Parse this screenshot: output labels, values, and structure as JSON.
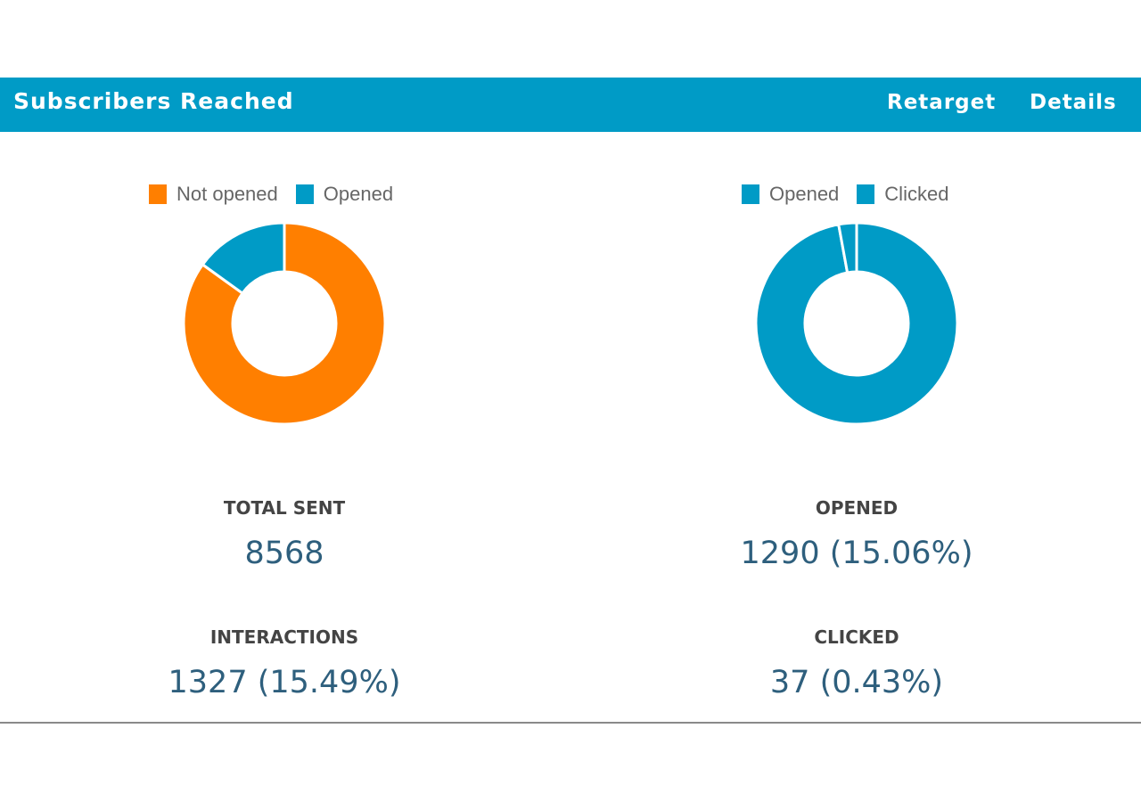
{
  "header": {
    "title": "Subscribers Reached",
    "links": [
      "Retarget",
      "Details"
    ]
  },
  "colors": {
    "accent": "#009bc6",
    "orange": "#ff7f00",
    "value_text": "#2e5f7d",
    "label_text": "#444444"
  },
  "chart_data": [
    {
      "type": "pie",
      "variant": "donut",
      "legend": [
        "Not opened",
        "Opened"
      ],
      "legend_position": "top",
      "categories": [
        "Not opened",
        "Opened"
      ],
      "values": [
        7278,
        1290
      ],
      "colors": [
        "#ff7f00",
        "#009bc6"
      ]
    },
    {
      "type": "pie",
      "variant": "donut",
      "legend": [
        "Opened",
        "Clicked"
      ],
      "legend_position": "top",
      "categories": [
        "Opened",
        "Clicked"
      ],
      "values": [
        1253,
        37
      ],
      "colors": [
        "#009bc6",
        "#009bc6"
      ]
    }
  ],
  "stats": {
    "total_sent": {
      "label": "TOTAL SENT",
      "value": "8568"
    },
    "interactions": {
      "label": "INTERACTIONS",
      "value": "1327 (15.49%)"
    },
    "opened": {
      "label": "OPENED",
      "value": "1290 (15.06%)"
    },
    "clicked": {
      "label": "CLICKED",
      "value": "37 (0.43%)"
    }
  }
}
